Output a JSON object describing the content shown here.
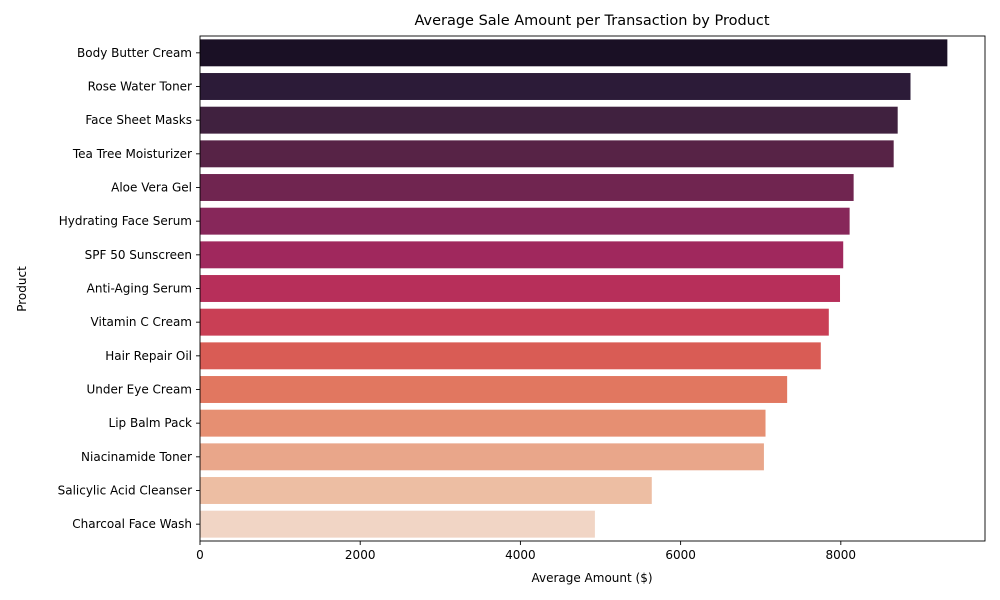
{
  "chart_data": {
    "type": "bar",
    "orientation": "horizontal",
    "title": "Average Sale Amount per Transaction by Product",
    "xlabel": "Average Amount ($)",
    "ylabel": "Product",
    "xlim": [
      0,
      9800
    ],
    "xticks": [
      "0",
      "2000",
      "4000",
      "6000",
      "8000"
    ],
    "xtick_values": [
      0,
      2000,
      4000,
      6000,
      8000
    ],
    "grid": false,
    "categories": [
      "Body Butter Cream",
      "Rose Water Toner",
      "Face Sheet Masks",
      "Tea Tree Moisturizer",
      "Aloe Vera Gel",
      "Hydrating Face Serum",
      "SPF 50 Sunscreen",
      "Anti-Aging Serum",
      "Vitamin C Cream",
      "Hair Repair Oil",
      "Under Eye Cream",
      "Lip Balm Pack",
      "Niacinamide Toner",
      "Salicylic Acid Cleanser",
      "Charcoal Face Wash"
    ],
    "values": [
      9330,
      8870,
      8710,
      8660,
      8160,
      8110,
      8030,
      7990,
      7850,
      7750,
      7330,
      7060,
      7040,
      5640,
      4930
    ],
    "colors": [
      "#1a1025",
      "#2c1b38",
      "#40213f",
      "#572346",
      "#702550",
      "#87275a",
      "#a0285d",
      "#b72f5a",
      "#c93f55",
      "#d95c55",
      "#e17760",
      "#e68f72",
      "#e9a68a",
      "#edbea3",
      "#f1d5c5"
    ]
  }
}
